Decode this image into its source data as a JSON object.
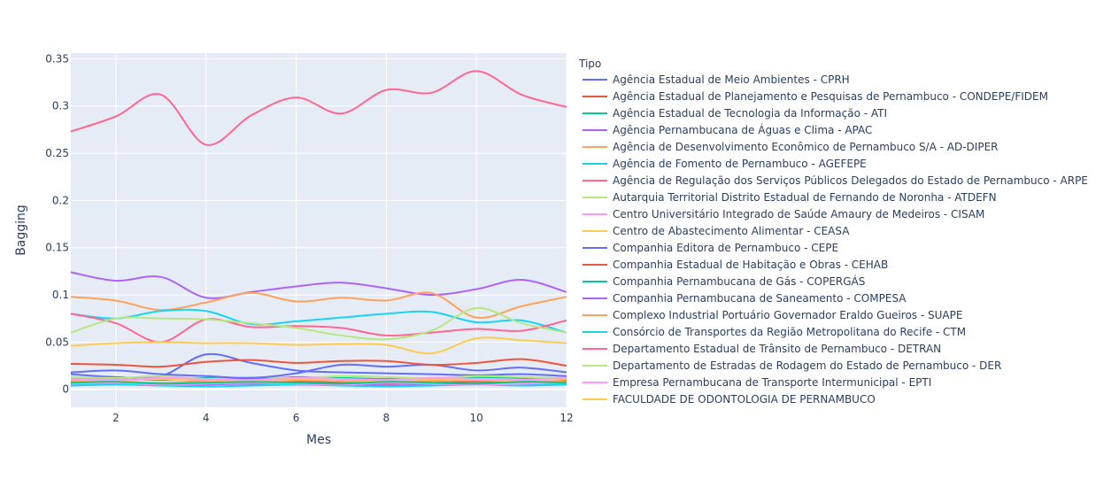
{
  "chart_data": {
    "type": "line",
    "title": "",
    "xlabel": "Mes",
    "ylabel": "Bagging",
    "xlim": [
      1,
      12
    ],
    "ylim": [
      -0.019,
      0.356
    ],
    "xticks": [
      2,
      4,
      6,
      8,
      10,
      12
    ],
    "yticks": [
      0,
      0.05,
      0.1,
      0.15,
      0.2,
      0.25,
      0.3,
      0.35
    ],
    "ytick_labels": [
      "0",
      "0.05",
      "0.1",
      "0.15",
      "0.2",
      "0.25",
      "0.3",
      "0.35"
    ],
    "legend_title": "Tipo",
    "legend_position": "right",
    "grid": true,
    "x": [
      1,
      2,
      3,
      4,
      5,
      6,
      7,
      8,
      9,
      10,
      11,
      12
    ],
    "series": [
      {
        "name": "Agência Estadual de Meio Ambientes - CPRH",
        "color": "#636efa",
        "values": [
          0.016,
          0.013,
          0.014,
          0.037,
          0.028,
          0.02,
          0.018,
          0.017,
          0.016,
          0.015,
          0.016,
          0.014
        ]
      },
      {
        "name": "Agência Estadual de Planejamento e Pesquisas de Pernambuco - CONDEPE/FIDEM",
        "color": "#EF553B",
        "values": [
          0.008,
          0.007,
          0.006,
          0.007,
          0.006,
          0.008,
          0.007,
          0.006,
          0.007,
          0.008,
          0.007,
          0.009
        ]
      },
      {
        "name": "Agência Estadual de Tecnologia da Informação - ATI",
        "color": "#00cc96",
        "values": [
          0.012,
          0.011,
          0.01,
          0.012,
          0.011,
          0.013,
          0.012,
          0.011,
          0.012,
          0.013,
          0.012,
          0.011
        ]
      },
      {
        "name": "Agência Pernambucana de Águas e Clima - APAC",
        "color": "#ab63fa",
        "values": [
          0.005,
          0.006,
          0.004,
          0.005,
          0.006,
          0.005,
          0.006,
          0.004,
          0.005,
          0.006,
          0.005,
          0.006
        ]
      },
      {
        "name": "Agência de Desenvolvimento Econômico de Pernambuco S/A - AD-DIPER",
        "color": "#FFA15A",
        "values": [
          0.009,
          0.008,
          0.007,
          0.009,
          0.008,
          0.01,
          0.009,
          0.008,
          0.009,
          0.01,
          0.009,
          0.008
        ]
      },
      {
        "name": "Agência de Fomento de Pernambuco - AGEFEPE",
        "color": "#19d3f3",
        "values": [
          0.004,
          0.005,
          0.004,
          0.003,
          0.004,
          0.005,
          0.004,
          0.003,
          0.004,
          0.005,
          0.004,
          0.005
        ]
      },
      {
        "name": "Agência de Regulação dos Serviços Públicos Delegados do Estado de Pernambuco - ARPE",
        "color": "#FF6692",
        "values": [
          0.273,
          0.289,
          0.312,
          0.259,
          0.29,
          0.309,
          0.292,
          0.317,
          0.314,
          0.337,
          0.312,
          0.299
        ]
      },
      {
        "name": "Autarquia Territorial Distrito Estadual de Fernando de Noronha - ATDEFN",
        "color": "#B6E880",
        "values": [
          0.013,
          0.012,
          0.014,
          0.011,
          0.013,
          0.012,
          0.014,
          0.013,
          0.012,
          0.014,
          0.013,
          0.012
        ]
      },
      {
        "name": "Centro Universitário Integrado de Saúde Amaury de Medeiros - CISAM",
        "color": "#FF97FF",
        "values": [
          0.006,
          0.007,
          0.005,
          0.006,
          0.007,
          0.006,
          0.005,
          0.007,
          0.006,
          0.005,
          0.006,
          0.007
        ]
      },
      {
        "name": "Centro de Abastecimento Alimentar - CEASA",
        "color": "#FECB52",
        "values": [
          0.01,
          0.009,
          0.011,
          0.01,
          0.009,
          0.011,
          0.01,
          0.009,
          0.011,
          0.01,
          0.009,
          0.011
        ]
      },
      {
        "name": "Companhia Editora de Pernambuco - CEPE",
        "color": "#636efa",
        "values": [
          0.018,
          0.02,
          0.016,
          0.014,
          0.012,
          0.017,
          0.026,
          0.024,
          0.026,
          0.02,
          0.023,
          0.018
        ]
      },
      {
        "name": "Companhia Estadual de Habitação e Obras - CEHAB",
        "color": "#EF553B",
        "values": [
          0.027,
          0.026,
          0.024,
          0.029,
          0.031,
          0.028,
          0.03,
          0.03,
          0.026,
          0.028,
          0.032,
          0.025
        ]
      },
      {
        "name": "Companhia Pernambucana de Gás - COPERGÁS",
        "color": "#00cc96",
        "values": [
          0.007,
          0.008,
          0.006,
          0.007,
          0.008,
          0.007,
          0.006,
          0.008,
          0.007,
          0.006,
          0.008,
          0.007
        ]
      },
      {
        "name": "Companhia Pernambucana de Saneamento - COMPESA",
        "color": "#ab63fa",
        "values": [
          0.124,
          0.115,
          0.119,
          0.097,
          0.103,
          0.109,
          0.113,
          0.107,
          0.1,
          0.106,
          0.116,
          0.103
        ]
      },
      {
        "name": "Complexo Industrial Portuário Governador Eraldo Gueiros - SUAPE",
        "color": "#FFA15A",
        "values": [
          0.098,
          0.094,
          0.084,
          0.092,
          0.102,
          0.093,
          0.097,
          0.094,
          0.102,
          0.076,
          0.088,
          0.098
        ]
      },
      {
        "name": "Consórcio de Transportes da Região Metropolitana do Recife - CTM",
        "color": "#19d3f3",
        "values": [
          0.08,
          0.075,
          0.083,
          0.083,
          0.069,
          0.072,
          0.076,
          0.08,
          0.082,
          0.071,
          0.073,
          0.06
        ]
      },
      {
        "name": "Departamento Estadual de Trânsito de Pernambuco - DETRAN",
        "color": "#FF6692",
        "values": [
          0.08,
          0.07,
          0.05,
          0.074,
          0.066,
          0.067,
          0.065,
          0.057,
          0.06,
          0.064,
          0.062,
          0.073
        ]
      },
      {
        "name": "Departamento de Estradas de Rodagem do Estado de Pernambuco - DER",
        "color": "#B6E880",
        "values": [
          0.06,
          0.075,
          0.075,
          0.074,
          0.07,
          0.065,
          0.057,
          0.053,
          0.062,
          0.086,
          0.07,
          0.06
        ]
      },
      {
        "name": "Empresa Pernambucana de Transporte Intermunicipal - EPTI",
        "color": "#FF97FF",
        "values": [
          0.011,
          0.01,
          0.012,
          0.011,
          0.01,
          0.012,
          0.011,
          0.01,
          0.012,
          0.011,
          0.01,
          0.012
        ]
      },
      {
        "name": "FACULDADE DE ODONTOLOGIA DE PERNAMBUCO",
        "color": "#FECB52",
        "values": [
          0.046,
          0.049,
          0.05,
          0.049,
          0.049,
          0.047,
          0.048,
          0.047,
          0.038,
          0.054,
          0.052,
          0.049
        ]
      }
    ]
  }
}
